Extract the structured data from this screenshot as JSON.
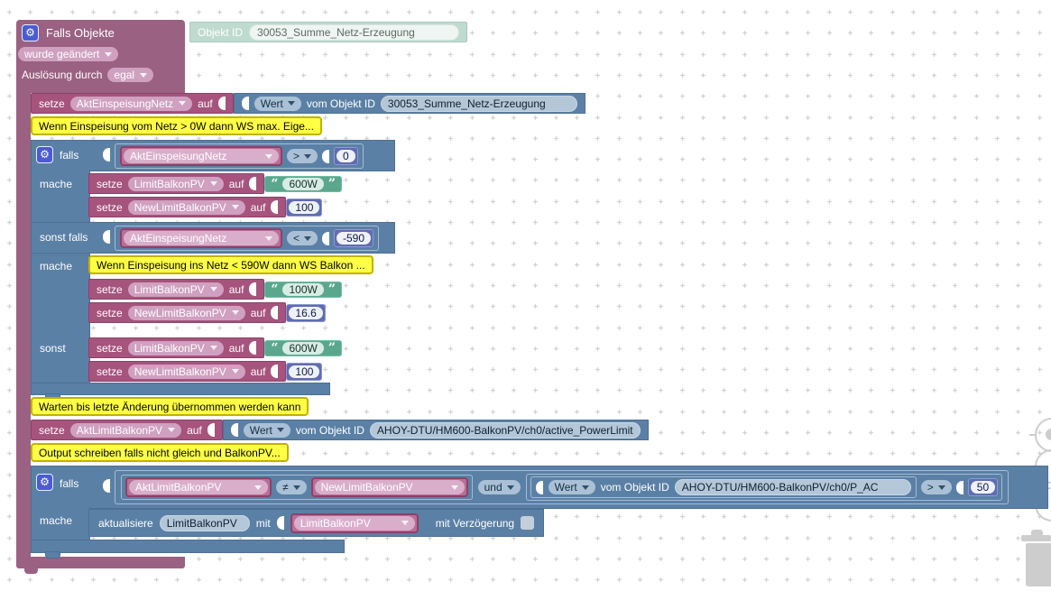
{
  "labels": {
    "setze": "setze",
    "auf": "auf",
    "falls": "falls",
    "mache": "mache",
    "sonst_falls": "sonst falls",
    "sonst": "sonst",
    "wert": "Wert",
    "vom_objekt_id": "vom Objekt ID",
    "und": "und",
    "mit": "mit",
    "gear_glyph": "⚙"
  },
  "trigger": {
    "title": "Falls Objekte",
    "event_value": "wurde geändert",
    "trigger_type_label": "Auslösung durch",
    "trigger_type_value": "egal",
    "oid_label": "Objekt ID",
    "oid_value": "30053_Summe_Netz-Erzeugung"
  },
  "set_einspeisung": {
    "variable": "AktEinspeisungNetz",
    "oid": "30053_Summe_Netz-Erzeugung"
  },
  "comments": {
    "c1": "Wenn Einspeisung vom Netz > 0W dann WS max. Eige...",
    "c2": "Wenn Einspeisung ins Netz < 590W dann WS Balkon ...",
    "c3": "Warten bis letzte Änderung übernommen werden kann",
    "c4": "Output schreiben falls nicht gleich und BalkonPV..."
  },
  "if1": {
    "cond1": {
      "variable": "AktEinspeisungNetz",
      "op": ">",
      "value": "0"
    },
    "then_rows": [
      {
        "variable": "LimitBalkonPV",
        "value": "600W"
      },
      {
        "variable": "NewLimitBalkonPV",
        "value": "100"
      }
    ],
    "cond2": {
      "variable": "AktEinspeisungNetz",
      "op": "<",
      "value": "-590"
    },
    "elseif_rows": [
      {
        "variable": "LimitBalkonPV",
        "value": "100W"
      },
      {
        "variable": "NewLimitBalkonPV",
        "value": "16.6"
      }
    ],
    "else_rows": [
      {
        "variable": "LimitBalkonPV",
        "value": "600W"
      },
      {
        "variable": "NewLimitBalkonPV",
        "value": "100"
      }
    ]
  },
  "set_limit": {
    "variable": "AktLimitBalkonPV",
    "oid": "AHOY-DTU/HM600-BalkonPV/ch0/active_PowerLimit"
  },
  "if2": {
    "left_variable": "AktLimitBalkonPV",
    "op1": "≠",
    "right_variable": "NewLimitBalkonPV",
    "logic_op": "und",
    "oid": "AHOY-DTU/HM600-BalkonPV/ch0/P_AC",
    "op2": ">",
    "value": "50"
  },
  "update": {
    "action": "aktualisiere",
    "target": "LimitBalkonPV",
    "with_variable": "LimitBalkonPV",
    "delay_label": "mit Verzögerung"
  },
  "colors": {
    "trigger_purple": "#9a6182",
    "statement_maroon": "#a6537d",
    "logic_blue": "#5b80a6",
    "number_indigo": "#5f6cb2",
    "string_green": "#5ba78e",
    "oid_teal": "#bfdacf",
    "comment_yellow": "#ffff45",
    "comment_border": "#c2b100"
  }
}
